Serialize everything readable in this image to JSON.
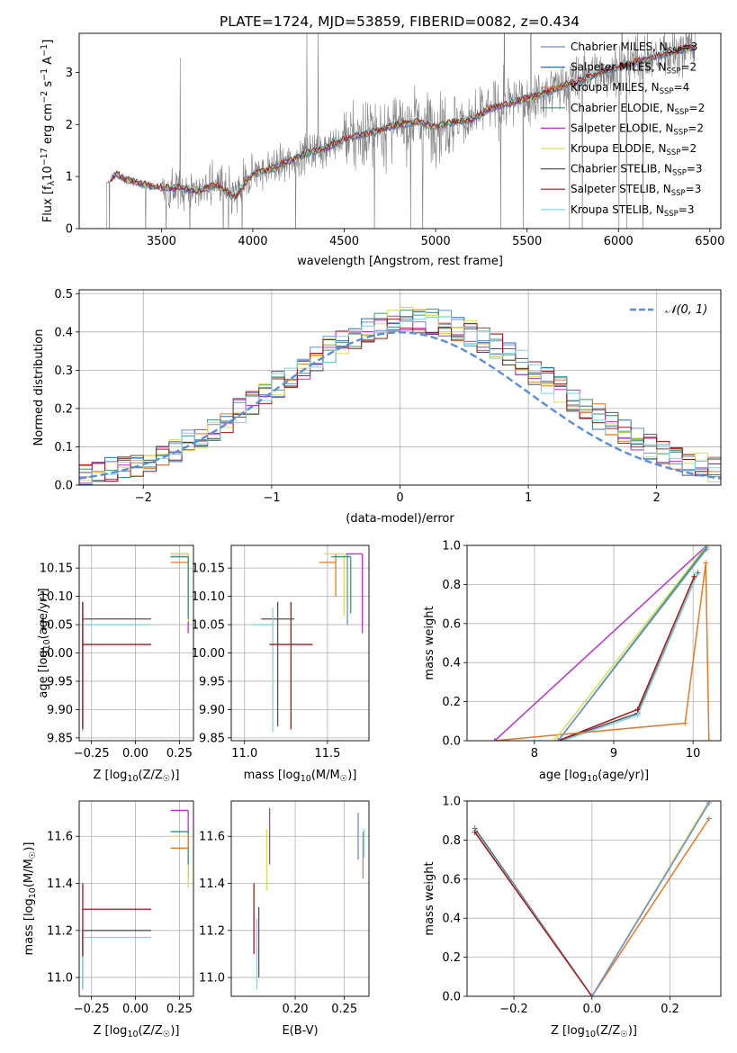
{
  "figure_title": "PLATE=1724, MJD=53859, FIBERID=0082, z=0.434",
  "models": [
    {
      "name": "Chabrier MILES",
      "nssp": "3",
      "color": "#6b8fd6"
    },
    {
      "name": "Salpeter MILES",
      "nssp": "2",
      "color": "#2f6fb0"
    },
    {
      "name": "Kroupa MILES",
      "nssp": "4",
      "color": "#e07b28"
    },
    {
      "name": "Chabrier ELODIE",
      "nssp": "2",
      "color": "#3a9a6a"
    },
    {
      "name": "Salpeter ELODIE",
      "nssp": "2",
      "color": "#b733c9"
    },
    {
      "name": "Kroupa ELODIE",
      "nssp": "2",
      "color": "#d6e05a"
    },
    {
      "name": "Chabrier STELIB",
      "nssp": "3",
      "color": "#555555"
    },
    {
      "name": "Salpeter STELIB",
      "nssp": "3",
      "color": "#a01818"
    },
    {
      "name": "Kroupa STELIB",
      "nssp": "3",
      "color": "#7fd3e0"
    }
  ],
  "chart_data": [
    {
      "type": "line",
      "id": "spectrum",
      "xlabel": "wavelength [Angstrom, rest frame]",
      "ylabel_parts": [
        "Flux [f",
        "λ",
        "10",
        "−17",
        " erg cm",
        "−2",
        " s",
        "−1",
        " A",
        "−1",
        "]"
      ],
      "xlim": [
        3050,
        6560
      ],
      "ylim": [
        0,
        3.75
      ],
      "xticks": [
        3500,
        4000,
        4500,
        5000,
        5500,
        6000,
        6500
      ],
      "yticks": [
        0,
        1,
        2,
        3
      ],
      "data_start": 3200,
      "data_end": 6420,
      "model_knots": {
        "x": [
          3200,
          3250,
          3300,
          3400,
          3500,
          3600,
          3700,
          3800,
          3900,
          4000,
          4100,
          4200,
          4300,
          4400,
          4500,
          4600,
          4700,
          4800,
          4900,
          5000,
          5100,
          5200,
          5300,
          5400,
          5500,
          5600,
          5700,
          5800,
          5900,
          6000,
          6100,
          6200,
          6300,
          6420
        ],
        "y": [
          0.85,
          1.05,
          0.95,
          0.85,
          0.78,
          0.78,
          0.72,
          0.85,
          0.6,
          1.05,
          1.15,
          1.3,
          1.45,
          1.55,
          1.72,
          1.8,
          1.9,
          2.0,
          2.05,
          1.95,
          2.05,
          2.1,
          2.3,
          2.4,
          2.5,
          2.6,
          2.75,
          2.85,
          3.0,
          3.1,
          3.2,
          3.3,
          3.4,
          3.5
        ]
      }
    },
    {
      "type": "histogram",
      "id": "residuals",
      "xlabel": "(data-model)/error",
      "ylabel": "Normed distribution",
      "xlim": [
        -2.5,
        2.5
      ],
      "ylim": [
        0,
        0.51
      ],
      "xticks": [
        -2,
        -1,
        0,
        1,
        2
      ],
      "yticks": [
        0.0,
        0.1,
        0.2,
        0.3,
        0.4,
        0.5
      ],
      "bin_start": -2.5,
      "bin_width": 0.1,
      "reference_curve": "𝒩(0, 1)",
      "reference_color": "#5b8ed6"
    },
    {
      "type": "scatter",
      "id": "age-vs-Z",
      "xlabel_parts": [
        "Z [log",
        "10",
        "(Z/Z",
        "☉",
        ")]"
      ],
      "ylabel_parts": [
        "age  [log",
        "10",
        "(age/yr)]"
      ],
      "xlim": [
        -0.32,
        0.33
      ],
      "ylim": [
        9.845,
        10.19
      ],
      "xticks": [
        -0.25,
        0.0,
        0.25
      ],
      "yticks": [
        9.85,
        9.9,
        9.95,
        10.0,
        10.05,
        10.1,
        10.15
      ],
      "points": [
        {
          "model": 6,
          "x": -0.3,
          "y": 10.06,
          "xerr": [
            0.0,
            0.39
          ],
          "yerr": [
            0.19,
            0.03
          ]
        },
        {
          "model": 8,
          "x": -0.3,
          "y": 10.05,
          "xerr": [
            0.0,
            0.39
          ],
          "yerr": [
            0.19,
            0.03
          ]
        },
        {
          "model": 7,
          "x": -0.3,
          "y": 10.015,
          "xerr": [
            0.0,
            0.39
          ],
          "yerr": [
            0.15,
            0.075
          ]
        },
        {
          "model": 0,
          "x": 0.3,
          "y": 10.17,
          "xerr": [
            0.1,
            0.0
          ],
          "yerr": [
            0.12,
            0.005
          ]
        },
        {
          "model": 2,
          "x": 0.3,
          "y": 10.16,
          "xerr": [
            0.1,
            0.0
          ],
          "yerr": [
            0.06,
            0.015
          ]
        },
        {
          "model": 4,
          "x": 0.3,
          "y": 10.175,
          "xerr": [
            0.1,
            0.0
          ],
          "yerr": [
            0.14,
            0.0
          ]
        },
        {
          "model": 5,
          "x": 0.3,
          "y": 10.175,
          "xerr": [
            0.1,
            0.0
          ],
          "yerr": [
            0.12,
            0.0
          ]
        },
        {
          "model": 3,
          "x": 0.3,
          "y": 10.17,
          "xerr": [
            0.1,
            0.0
          ],
          "yerr": [
            0.11,
            0.0
          ]
        }
      ]
    },
    {
      "type": "scatter",
      "id": "age-vs-mass",
      "xlabel_parts": [
        "mass [log",
        "10",
        "(M/M",
        "☉",
        ")]"
      ],
      "xlim": [
        10.92,
        11.75
      ],
      "ylim": [
        9.845,
        10.19
      ],
      "xticks": [
        11.0,
        11.5
      ],
      "yticks": [
        9.85,
        9.9,
        9.95,
        10.0,
        10.05,
        10.1,
        10.15
      ],
      "points": [
        {
          "model": 6,
          "x": 11.2,
          "y": 10.06,
          "xerr": [
            0.1,
            0.1
          ],
          "yerr": [
            0.19,
            0.03
          ]
        },
        {
          "model": 8,
          "x": 11.17,
          "y": 10.05,
          "xerr": [
            0.12,
            0.0
          ],
          "yerr": [
            0.19,
            0.03
          ]
        },
        {
          "model": 7,
          "x": 11.28,
          "y": 10.015,
          "xerr": [
            0.13,
            0.13
          ],
          "yerr": [
            0.15,
            0.075
          ]
        },
        {
          "model": 0,
          "x": 11.62,
          "y": 10.17,
          "xerr": [
            0.1,
            0.0
          ],
          "yerr": [
            0.12,
            0.005
          ]
        },
        {
          "model": 2,
          "x": 11.55,
          "y": 10.16,
          "xerr": [
            0.1,
            0.0
          ],
          "yerr": [
            0.06,
            0.015
          ]
        },
        {
          "model": 4,
          "x": 11.71,
          "y": 10.175,
          "xerr": [
            0.1,
            0.0
          ],
          "yerr": [
            0.14,
            0.0
          ]
        },
        {
          "model": 5,
          "x": 11.6,
          "y": 10.175,
          "xerr": [
            0.12,
            0.0
          ],
          "yerr": [
            0.11,
            0.0
          ]
        },
        {
          "model": 3,
          "x": 11.64,
          "y": 10.17,
          "xerr": [
            0.1,
            0.0
          ],
          "yerr": [
            0.1,
            0.0
          ]
        }
      ]
    },
    {
      "type": "line",
      "id": "weight-vs-age",
      "xlabel_parts": [
        "age  [log",
        "10",
        "(age/yr)]"
      ],
      "ylabel": "mass weight",
      "xlim": [
        7.15,
        10.35
      ],
      "ylim": [
        0,
        1.0
      ],
      "xticks": [
        8,
        9,
        10
      ],
      "yticks": [
        0.0,
        0.2,
        0.4,
        0.6,
        0.8,
        1.0
      ],
      "series": [
        {
          "model": 6,
          "x": [
            8.3,
            9.3,
            10.06
          ],
          "y": [
            0.0,
            0.14,
            0.86
          ]
        },
        {
          "model": 8,
          "x": [
            8.35,
            9.3,
            10.05
          ],
          "y": [
            0.0,
            0.13,
            0.85
          ]
        },
        {
          "model": 7,
          "x": [
            8.3,
            9.3,
            10.015
          ],
          "y": [
            0.0,
            0.16,
            0.84
          ]
        },
        {
          "model": 2,
          "x": [
            7.5,
            9.9,
            10.16,
            10.2
          ],
          "y": [
            0.0,
            0.09,
            0.91,
            0.0
          ]
        },
        {
          "model": 4,
          "x": [
            7.5,
            10.175
          ],
          "y": [
            0.0,
            1.0
          ]
        },
        {
          "model": 5,
          "x": [
            8.25,
            10.175
          ],
          "y": [
            0.0,
            1.0
          ]
        },
        {
          "model": 3,
          "x": [
            8.3,
            10.17
          ],
          "y": [
            0.0,
            0.99
          ]
        },
        {
          "model": 0,
          "x": [
            8.3,
            10.17
          ],
          "y": [
            0.0,
            0.98
          ]
        }
      ]
    },
    {
      "type": "scatter",
      "id": "mass-vs-Z",
      "xlabel_parts": [
        "Z [log",
        "10",
        "(Z/Z",
        "☉",
        ")]"
      ],
      "ylabel_parts": [
        "mass [log",
        "10",
        "(M/M",
        "☉",
        ")]"
      ],
      "xlim": [
        -0.32,
        0.33
      ],
      "ylim": [
        10.92,
        11.75
      ],
      "xticks": [
        -0.25,
        0.0,
        0.25
      ],
      "yticks": [
        11.0,
        11.2,
        11.4,
        11.6
      ],
      "points": [
        {
          "model": 6,
          "x": -0.3,
          "y": 11.2,
          "xerr": [
            0.0,
            0.39
          ],
          "yerr": [
            0.25,
            0.0
          ]
        },
        {
          "model": 8,
          "x": -0.3,
          "y": 11.17,
          "xerr": [
            0.0,
            0.39
          ],
          "yerr": [
            0.22,
            0.0
          ]
        },
        {
          "model": 7,
          "x": -0.3,
          "y": 11.29,
          "xerr": [
            0.0,
            0.39
          ],
          "yerr": [
            0.2,
            0.11
          ]
        },
        {
          "model": 4,
          "x": 0.3,
          "y": 11.71,
          "xerr": [
            0.1,
            0.0
          ],
          "yerr": [
            0.1,
            0.0
          ]
        },
        {
          "model": 0,
          "x": 0.3,
          "y": 11.62,
          "xerr": [
            0.1,
            0.0
          ],
          "yerr": [
            0.2,
            0.0
          ]
        },
        {
          "model": 5,
          "x": 0.3,
          "y": 11.6,
          "xerr": [
            0.1,
            0.0
          ],
          "yerr": [
            0.22,
            0.0
          ]
        },
        {
          "model": 3,
          "x": 0.3,
          "y": 11.62,
          "xerr": [
            0.1,
            0.0
          ],
          "yerr": [
            0.14,
            0.0
          ]
        },
        {
          "model": 2,
          "x": 0.3,
          "y": 11.55,
          "xerr": [
            0.1,
            0.0
          ],
          "yerr": [
            0.0,
            0.06
          ]
        }
      ]
    },
    {
      "type": "scatter",
      "id": "mass-vs-ebv",
      "xlabel": "E(B-V)",
      "xlim": [
        0.135,
        0.275
      ],
      "ylim": [
        10.92,
        11.75
      ],
      "xticks": [
        0.2,
        0.25
      ],
      "yticks": [
        11.0,
        11.2,
        11.4,
        11.6
      ],
      "points": [
        {
          "model": 7,
          "x": 0.158,
          "y": 11.25,
          "yerr": [
            0.15,
            0.15
          ]
        },
        {
          "model": 8,
          "x": 0.161,
          "y": 11.1,
          "yerr": [
            0.15,
            0.15
          ]
        },
        {
          "model": 6,
          "x": 0.163,
          "y": 11.15,
          "yerr": [
            0.15,
            0.15
          ]
        },
        {
          "model": 5,
          "x": 0.171,
          "y": 11.5,
          "yerr": [
            0.13,
            0.13
          ]
        },
        {
          "model": 4,
          "x": 0.174,
          "y": 11.6,
          "yerr": [
            0.12,
            0.12
          ]
        },
        {
          "model": 0,
          "x": 0.264,
          "y": 11.6,
          "yerr": [
            0.1,
            0.1
          ]
        },
        {
          "model": 2,
          "x": 0.269,
          "y": 11.52,
          "yerr": [
            0.1,
            0.1
          ]
        },
        {
          "model": 8,
          "x": 0.27,
          "y": 11.57,
          "yerr": [
            0.06,
            0.06
          ]
        }
      ]
    },
    {
      "type": "line",
      "id": "weight-vs-Z",
      "xlabel_parts": [
        "Z [log",
        "10",
        "(Z/Z",
        "☉",
        ")]"
      ],
      "ylabel": "mass weight",
      "xlim": [
        -0.32,
        0.33
      ],
      "ylim": [
        0,
        1.0
      ],
      "xticks": [
        -0.2,
        0.0,
        0.2
      ],
      "yticks": [
        0.0,
        0.2,
        0.4,
        0.6,
        0.8,
        1.0
      ],
      "series": [
        {
          "model": 6,
          "x": [
            -0.3,
            0.0
          ],
          "y": [
            0.86,
            0.0
          ]
        },
        {
          "model": 8,
          "x": [
            -0.3,
            0.0
          ],
          "y": [
            0.85,
            0.0
          ]
        },
        {
          "model": 7,
          "x": [
            -0.3,
            0.0
          ],
          "y": [
            0.84,
            0.0
          ]
        },
        {
          "model": 2,
          "x": [
            0.0,
            0.3
          ],
          "y": [
            0.0,
            0.91
          ]
        },
        {
          "model": 4,
          "x": [
            0.0,
            0.3
          ],
          "y": [
            0.0,
            1.0
          ]
        },
        {
          "model": 5,
          "x": [
            0.0,
            0.3
          ],
          "y": [
            0.0,
            1.0
          ]
        },
        {
          "model": 0,
          "x": [
            0.0,
            0.3
          ],
          "y": [
            0.0,
            0.99
          ]
        }
      ]
    }
  ]
}
